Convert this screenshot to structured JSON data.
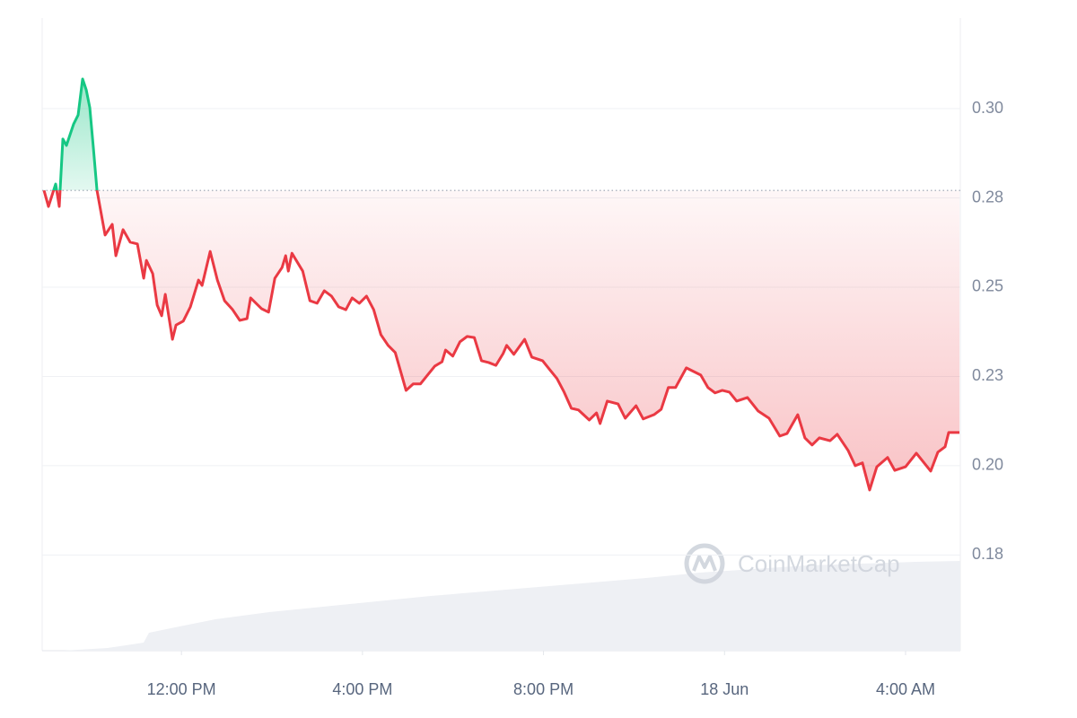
{
  "chart_data": {
    "type": "line",
    "watermark": "CoinMarketCap",
    "up_color": "#16c784",
    "down_color": "#ea3943",
    "baseline": 0.2771,
    "grid": true,
    "xlim": [
      8.923,
      29.21
    ],
    "ylim": [
      0.1482,
      0.3254
    ],
    "xticks": [
      {
        "value": 12,
        "label": "12:00 PM"
      },
      {
        "value": 16,
        "label": "4:00 PM"
      },
      {
        "value": 20,
        "label": "8:00 PM"
      },
      {
        "value": 24,
        "label": "18 Jun"
      },
      {
        "value": 28,
        "label": "4:00 AM"
      }
    ],
    "yticks": [
      {
        "value": 0.175,
        "label": "0.18"
      },
      {
        "value": 0.2,
        "label": "0.20"
      },
      {
        "value": 0.225,
        "label": "0.23"
      },
      0.25,
      {
        "value": 0.275,
        "label": "0.28"
      },
      {
        "value": 0.3,
        "label": "0.30"
      }
    ],
    "x": [
      8.963,
      9.062,
      9.221,
      9.3,
      9.38,
      9.459,
      9.618,
      9.717,
      9.816,
      9.896,
      9.975,
      10.055,
      10.134,
      10.313,
      10.471,
      10.551,
      10.71,
      10.868,
      11.027,
      11.166,
      11.226,
      11.365,
      11.464,
      11.563,
      11.643,
      11.801,
      11.881,
      12.04,
      12.198,
      12.377,
      12.456,
      12.635,
      12.794,
      12.953,
      13.131,
      13.29,
      13.449,
      13.528,
      13.767,
      13.925,
      14.064,
      14.223,
      14.303,
      14.362,
      14.442,
      14.68,
      14.839,
      14.997,
      15.156,
      15.315,
      15.474,
      15.633,
      15.772,
      15.93,
      16.089,
      16.248,
      16.407,
      16.566,
      16.724,
      16.963,
      17.121,
      17.28,
      17.439,
      17.598,
      17.757,
      17.836,
      17.995,
      18.154,
      18.313,
      18.471,
      18.63,
      18.789,
      18.948,
      19.107,
      19.186,
      19.345,
      19.583,
      19.742,
      19.98,
      20.139,
      20.298,
      20.456,
      20.615,
      20.774,
      21.012,
      21.171,
      21.25,
      21.409,
      21.647,
      21.806,
      22.045,
      22.203,
      22.442,
      22.6,
      22.759,
      22.918,
      23.156,
      23.474,
      23.633,
      23.791,
      23.95,
      24.109,
      24.268,
      24.506,
      24.744,
      24.983,
      25.221,
      25.38,
      25.618,
      25.776,
      25.935,
      26.094,
      26.332,
      26.491,
      26.729,
      26.888,
      27.047,
      27.206,
      27.365,
      27.603,
      27.762,
      28.0,
      28.238,
      28.556,
      28.714,
      28.873,
      28.953,
      29.191
    ],
    "values": [
      0.2771,
      0.2726,
      0.2789,
      0.2726,
      0.2915,
      0.2897,
      0.2957,
      0.2982,
      0.3083,
      0.3053,
      0.3003,
      0.2889,
      0.2771,
      0.2646,
      0.2676,
      0.2588,
      0.2661,
      0.2626,
      0.2621,
      0.2525,
      0.2575,
      0.2538,
      0.245,
      0.242,
      0.248,
      0.2354,
      0.2394,
      0.2405,
      0.2445,
      0.252,
      0.2505,
      0.26,
      0.252,
      0.2462,
      0.2437,
      0.2407,
      0.2412,
      0.247,
      0.244,
      0.243,
      0.2525,
      0.2555,
      0.2588,
      0.2545,
      0.2595,
      0.2545,
      0.2462,
      0.2455,
      0.249,
      0.2475,
      0.2445,
      0.2437,
      0.247,
      0.2455,
      0.2475,
      0.2437,
      0.2367,
      0.2337,
      0.2317,
      0.2211,
      0.2229,
      0.2229,
      0.2254,
      0.2279,
      0.2291,
      0.2324,
      0.2307,
      0.2347,
      0.2362,
      0.2359,
      0.2294,
      0.2289,
      0.2281,
      0.2314,
      0.2337,
      0.2312,
      0.2354,
      0.2304,
      0.2294,
      0.2269,
      0.2244,
      0.2206,
      0.2161,
      0.2156,
      0.2128,
      0.2148,
      0.2118,
      0.2181,
      0.2173,
      0.2133,
      0.2168,
      0.2131,
      0.2143,
      0.2158,
      0.2219,
      0.2219,
      0.2274,
      0.2254,
      0.2219,
      0.2204,
      0.2211,
      0.2206,
      0.2181,
      0.2191,
      0.2153,
      0.2133,
      0.2083,
      0.209,
      0.2143,
      0.2078,
      0.2058,
      0.2078,
      0.207,
      0.2088,
      0.2043,
      0.2,
      0.2008,
      0.1932,
      0.1997,
      0.2023,
      0.1987,
      0.1997,
      0.2035,
      0.1985,
      0.2038,
      0.2053,
      0.2093,
      0.2093
    ]
  }
}
